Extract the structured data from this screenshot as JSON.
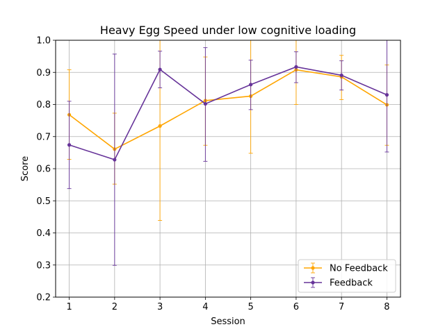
{
  "chart_data": {
    "type": "line",
    "title": "Heavy Egg Speed under low cognitive loading",
    "xlabel": "Session",
    "ylabel": "Score",
    "x": [
      1,
      2,
      3,
      4,
      5,
      6,
      7,
      8
    ],
    "xlim": [
      0.7,
      8.3
    ],
    "ylim": [
      0.2,
      1.0
    ],
    "yticks": [
      0.2,
      0.3,
      0.4,
      0.5,
      0.6,
      0.7,
      0.8,
      0.9,
      1.0
    ],
    "ytick_labels": [
      "0.2",
      "0.3",
      "0.4",
      "0.5",
      "0.6",
      "0.7",
      "0.8",
      "0.9",
      "1.0"
    ],
    "xtick_labels": [
      "1",
      "2",
      "3",
      "4",
      "5",
      "6",
      "7",
      "8"
    ],
    "grid": true,
    "legend_position": "lower-right",
    "series": [
      {
        "name": "No Feedback",
        "color": "#ffa500",
        "values": [
          0.768,
          0.661,
          0.733,
          0.812,
          0.826,
          0.908,
          0.886,
          0.799
        ],
        "err_low": [
          0.629,
          0.552,
          0.439,
          0.673,
          0.648,
          0.8,
          0.815,
          0.673
        ],
        "err_high": [
          0.908,
          0.773,
          1.03,
          0.948,
          1.005,
          1.01,
          0.953,
          0.923
        ]
      },
      {
        "name": "Feedback",
        "color": "#663399",
        "values": [
          0.674,
          0.628,
          0.909,
          0.802,
          0.862,
          0.917,
          0.891,
          0.83
        ],
        "err_low": [
          0.538,
          0.299,
          0.852,
          0.623,
          0.784,
          0.868,
          0.845,
          0.652
        ],
        "err_high": [
          0.81,
          0.957,
          0.966,
          0.977,
          0.938,
          0.964,
          0.936,
          1.01
        ]
      }
    ]
  }
}
